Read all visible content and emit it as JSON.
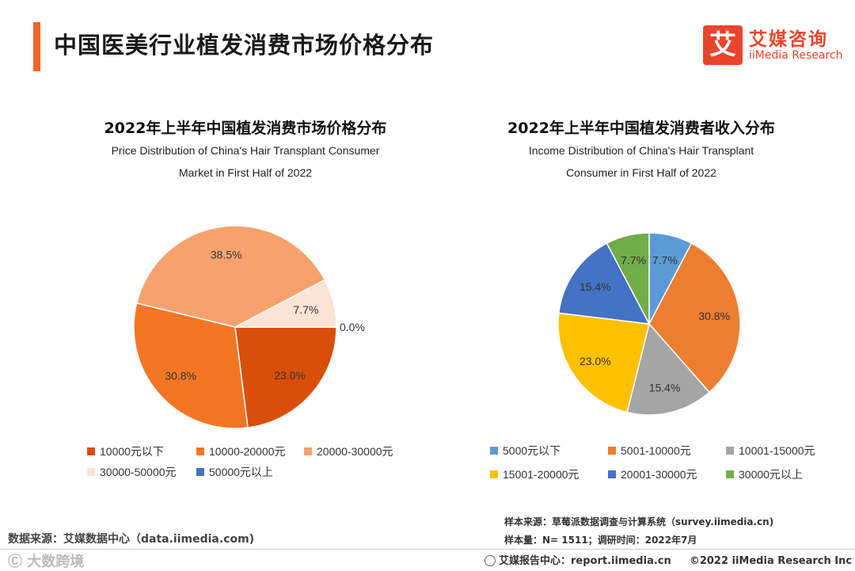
{
  "header": {
    "title": "中国医美行业植发消费市场价格分布",
    "accent_color": "#f26522"
  },
  "logo": {
    "glyph": "艾",
    "cn": "艾媒咨询",
    "en": "iiMedia Research",
    "color": "#e8452c"
  },
  "chart_data": [
    {
      "type": "pie",
      "title": "2022年上半年中国植发消费市场价格分布",
      "subtitle_lines": [
        "Price Distribution of China's Hair Transplant Consumer",
        "Market in First Half of 2022"
      ],
      "labels": [
        "10000元以下",
        "10000-20000元",
        "20000-30000元",
        "30000-50000元",
        "50000元以上"
      ],
      "values": [
        23.0,
        30.8,
        38.5,
        7.7,
        0.0
      ],
      "value_labels": [
        "23.0%",
        "30.8%",
        "38.5%",
        "7.7%",
        "0.0%"
      ],
      "colors": [
        "#d94e0a",
        "#f47625",
        "#f7a26e",
        "#fbe3d5",
        "#4472c4"
      ],
      "legend_position": "bottom"
    },
    {
      "type": "pie",
      "title": "2022年上半年中国植发消费者收入分布",
      "subtitle_lines": [
        "Income Distribution of China's Hair Transplant",
        "Consumer in First Half of 2022"
      ],
      "labels": [
        "5000元以下",
        "5001-10000元",
        "10001-15000元",
        "15001-20000元",
        "20001-30000元",
        "30000元以上"
      ],
      "values": [
        7.7,
        30.8,
        15.4,
        23.0,
        15.4,
        7.7
      ],
      "value_labels": [
        "7.7%",
        "30.8%",
        "15.4%",
        "23.0%",
        "15.4%",
        "7.7%"
      ],
      "colors": [
        "#5b9bd5",
        "#ed7d31",
        "#a5a5a5",
        "#ffc000",
        "#4472c4",
        "#70ad47"
      ],
      "legend_position": "bottom"
    }
  ],
  "notes": {
    "sample_source": "样本来源：草莓派数据调查与计算系统（survey.iimedia.cn)",
    "sample_size": "样本量：N= 1511；调研时间：2022年7月",
    "data_source": "数据来源：艾媒数据中心（data.iimedia.com)"
  },
  "footer": {
    "watermark": "Ⓒ 大数跨境",
    "report": "艾媒报告中心：report.iimedia.cn",
    "copyright": "©2022  iiMedia Research  Inc"
  }
}
